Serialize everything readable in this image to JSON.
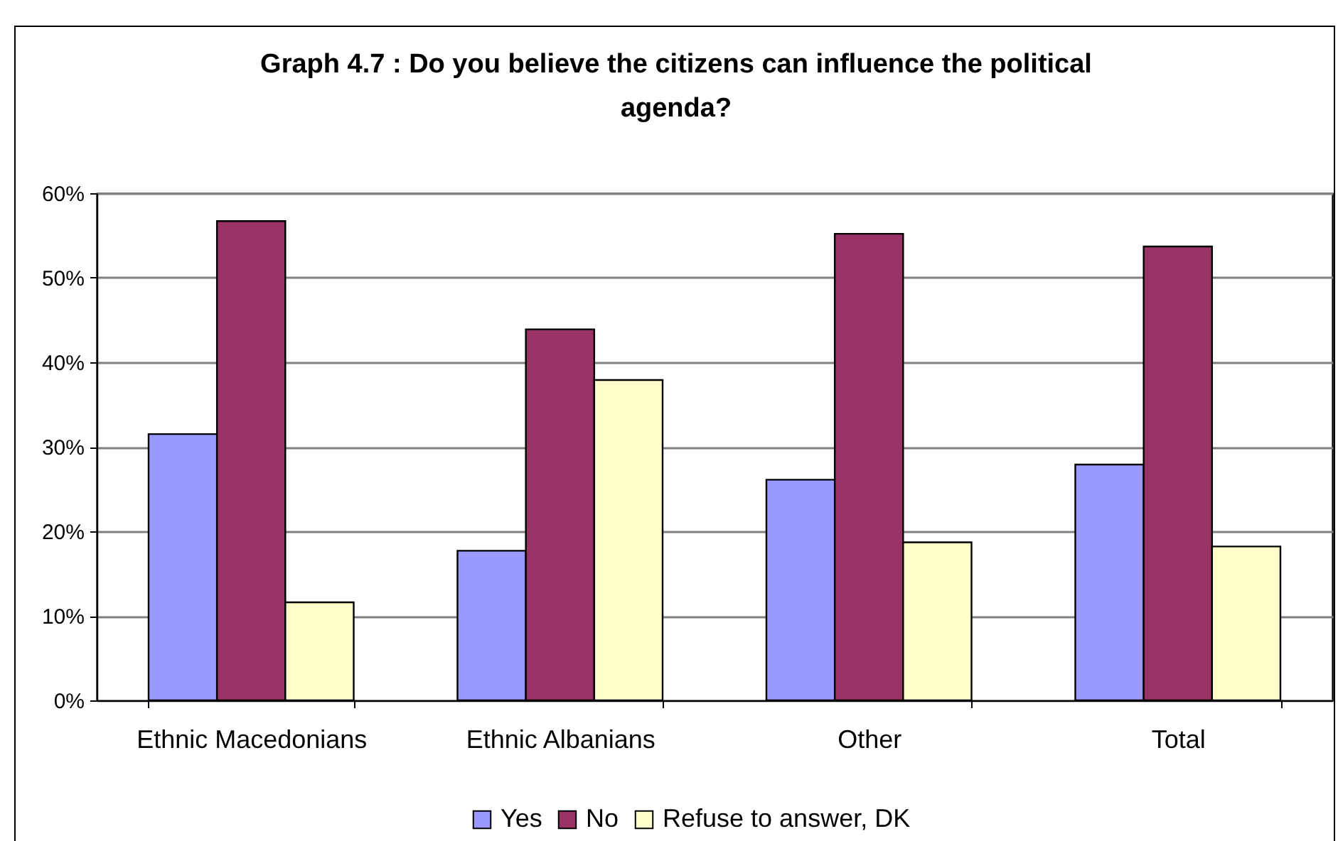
{
  "chart_data": {
    "type": "bar",
    "title": "Graph 4.7 : Do you believe the citizens can influence the political agenda?",
    "categories": [
      "Ethnic Macedonians",
      "Ethnic Albanians",
      "Other",
      "Total"
    ],
    "series": [
      {
        "name": "Yes",
        "color": "#9999ff",
        "values": [
          31.5,
          17.7,
          26.1,
          27.9
        ]
      },
      {
        "name": "No",
        "color": "#993366",
        "values": [
          56.7,
          43.9,
          55.2,
          53.7
        ]
      },
      {
        "name": "Refuse to answer, DK",
        "color": "#ffffcc",
        "values": [
          11.6,
          37.9,
          18.7,
          18.2
        ]
      }
    ],
    "ylim": [
      0,
      60
    ],
    "yticks": [
      {
        "value": 0,
        "label": "0%"
      },
      {
        "value": 10,
        "label": "10%"
      },
      {
        "value": 20,
        "label": "20%"
      },
      {
        "value": 30,
        "label": "30%"
      },
      {
        "value": 40,
        "label": "40%"
      },
      {
        "value": 50,
        "label": "50%"
      },
      {
        "value": 60,
        "label": "60%"
      }
    ],
    "grid": "y",
    "legend": "bottom"
  }
}
